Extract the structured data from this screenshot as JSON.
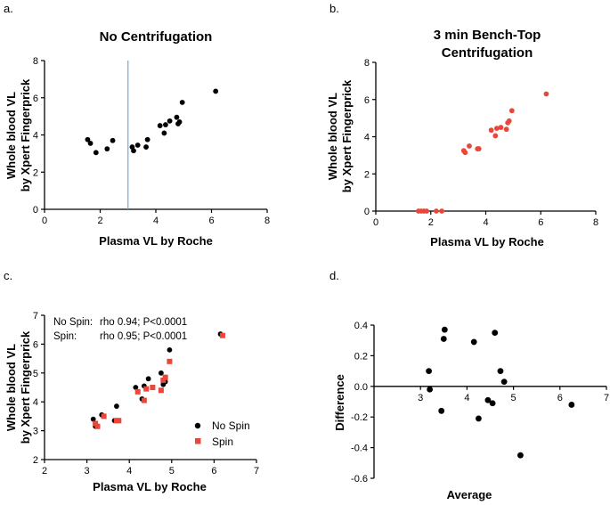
{
  "colors": {
    "black": "#000000",
    "red": "#e8473a",
    "vline": "#6fa8dc"
  },
  "chart_data": [
    {
      "panel": "a.",
      "type": "scatter",
      "title": "No Centrifugation",
      "xlabel": "Plasma VL by Roche",
      "ylabel": [
        "Whole blood VL",
        "by Xpert Fingerprick"
      ],
      "xlim": [
        0,
        8
      ],
      "ylim": [
        0,
        8
      ],
      "xticks": [
        0,
        2,
        4,
        6,
        8
      ],
      "yticks": [
        0,
        2,
        4,
        6,
        8
      ],
      "xtick_labels": [
        "0",
        "2",
        "4",
        "6",
        "8"
      ],
      "ytick_labels": [
        "0",
        "2",
        "4",
        "6",
        "8"
      ],
      "vline": 3.0,
      "series": [
        {
          "name": "No Spin",
          "color": "#000000",
          "marker": "circle",
          "points": [
            [
              1.55,
              3.75
            ],
            [
              1.65,
              3.55
            ],
            [
              1.85,
              3.05
            ],
            [
              2.25,
              3.25
            ],
            [
              2.45,
              3.7
            ],
            [
              3.15,
              3.35
            ],
            [
              3.2,
              3.15
            ],
            [
              3.35,
              3.45
            ],
            [
              3.65,
              3.35
            ],
            [
              3.7,
              3.75
            ],
            [
              4.15,
              4.5
            ],
            [
              4.3,
              4.1
            ],
            [
              4.35,
              4.55
            ],
            [
              4.5,
              4.75
            ],
            [
              4.75,
              4.95
            ],
            [
              4.8,
              4.6
            ],
            [
              4.85,
              4.7
            ],
            [
              4.95,
              5.75
            ],
            [
              6.15,
              6.35
            ]
          ]
        }
      ]
    },
    {
      "panel": "b.",
      "type": "scatter",
      "title": [
        "3 min Bench-Top",
        "Centrifugation"
      ],
      "xlabel": "Plasma VL by Roche",
      "ylabel": [
        "Whole blood VL",
        "by Xpert Fingerprick"
      ],
      "xlim": [
        0,
        8
      ],
      "ylim": [
        0,
        8
      ],
      "xticks": [
        0,
        2,
        4,
        6,
        8
      ],
      "yticks": [
        0,
        2,
        4,
        6,
        8
      ],
      "xtick_labels": [
        "0",
        "2",
        "4",
        "6",
        "8"
      ],
      "ytick_labels": [
        "0",
        "2",
        "4",
        "6",
        "8"
      ],
      "series": [
        {
          "name": "Spin",
          "color": "#e8473a",
          "marker": "circle",
          "points": [
            [
              1.55,
              0
            ],
            [
              1.65,
              0
            ],
            [
              1.75,
              0
            ],
            [
              1.85,
              0
            ],
            [
              2.2,
              0
            ],
            [
              2.4,
              0
            ],
            [
              3.2,
              3.25
            ],
            [
              3.25,
              3.15
            ],
            [
              3.4,
              3.5
            ],
            [
              3.7,
              3.35
            ],
            [
              3.75,
              3.35
            ],
            [
              4.2,
              4.35
            ],
            [
              4.35,
              4.05
            ],
            [
              4.4,
              4.45
            ],
            [
              4.55,
              4.5
            ],
            [
              4.75,
              4.4
            ],
            [
              4.8,
              4.75
            ],
            [
              4.85,
              4.85
            ],
            [
              4.95,
              5.4
            ],
            [
              6.2,
              6.3
            ]
          ]
        }
      ]
    },
    {
      "panel": "c.",
      "type": "scatter",
      "title": "",
      "xlabel": "Plasma VL by Roche",
      "ylabel": [
        "Whole blood VL",
        "by Xpert Fingerprick"
      ],
      "xlim": [
        2,
        7
      ],
      "ylim": [
        2,
        7
      ],
      "xticks": [
        2,
        3,
        4,
        5,
        6,
        7
      ],
      "yticks": [
        2,
        3,
        4,
        5,
        6,
        7
      ],
      "xtick_labels": [
        "2",
        "3",
        "4",
        "5",
        "6",
        "7"
      ],
      "ytick_labels": [
        "2",
        "3",
        "4",
        "5",
        "6",
        "7"
      ],
      "annotations": [
        {
          "label": "No Spin:",
          "text": "rho 0.94; P<0.0001"
        },
        {
          "label": "Spin:",
          "text": "rho 0.95; P<0.0001"
        }
      ],
      "series": [
        {
          "name": "No Spin",
          "color": "#000000",
          "marker": "circle",
          "points": [
            [
              3.15,
              3.4
            ],
            [
              3.2,
              3.15
            ],
            [
              3.35,
              3.55
            ],
            [
              3.65,
              3.35
            ],
            [
              3.7,
              3.85
            ],
            [
              4.15,
              4.5
            ],
            [
              4.3,
              4.1
            ],
            [
              4.35,
              4.55
            ],
            [
              4.45,
              4.8
            ],
            [
              4.75,
              5.0
            ],
            [
              4.8,
              4.6
            ],
            [
              4.85,
              4.7
            ],
            [
              4.95,
              5.8
            ],
            [
              6.15,
              6.35
            ]
          ]
        },
        {
          "name": "Spin",
          "color": "#e8473a",
          "marker": "square",
          "points": [
            [
              3.2,
              3.25
            ],
            [
              3.25,
              3.15
            ],
            [
              3.4,
              3.5
            ],
            [
              3.7,
              3.35
            ],
            [
              3.75,
              3.35
            ],
            [
              4.2,
              4.35
            ],
            [
              4.35,
              4.05
            ],
            [
              4.4,
              4.45
            ],
            [
              4.55,
              4.5
            ],
            [
              4.75,
              4.4
            ],
            [
              4.8,
              4.75
            ],
            [
              4.85,
              4.85
            ],
            [
              4.95,
              5.4
            ],
            [
              6.2,
              6.3
            ]
          ]
        }
      ]
    },
    {
      "panel": "d.",
      "type": "scatter",
      "title": "",
      "xlabel": "Average",
      "ylabel": [
        "Difference"
      ],
      "xlim": [
        2,
        7
      ],
      "ylim": [
        -0.6,
        0.4
      ],
      "xaxis_at_y": 0,
      "xticks": [
        3,
        4,
        5,
        6,
        7
      ],
      "yticks": [
        -0.6,
        -0.4,
        -0.2,
        0,
        0.2,
        0.4
      ],
      "xtick_labels": [
        "3",
        "4",
        "5",
        "6",
        "7"
      ],
      "ytick_labels": [
        "-0.6",
        "-0.4",
        "-0.2",
        "0.0",
        "0.2",
        "0.4"
      ],
      "series": [
        {
          "name": "Difference",
          "color": "#000000",
          "marker": "circle",
          "points": [
            [
              3.18,
              0.1
            ],
            [
              3.2,
              -0.02
            ],
            [
              3.45,
              -0.16
            ],
            [
              3.5,
              0.31
            ],
            [
              3.52,
              0.37
            ],
            [
              4.15,
              0.29
            ],
            [
              4.25,
              -0.21
            ],
            [
              4.45,
              -0.09
            ],
            [
              4.55,
              -0.11
            ],
            [
              4.6,
              0.35
            ],
            [
              4.72,
              0.1
            ],
            [
              4.8,
              0.03
            ],
            [
              5.15,
              -0.45
            ],
            [
              6.25,
              -0.12
            ]
          ]
        }
      ]
    }
  ]
}
